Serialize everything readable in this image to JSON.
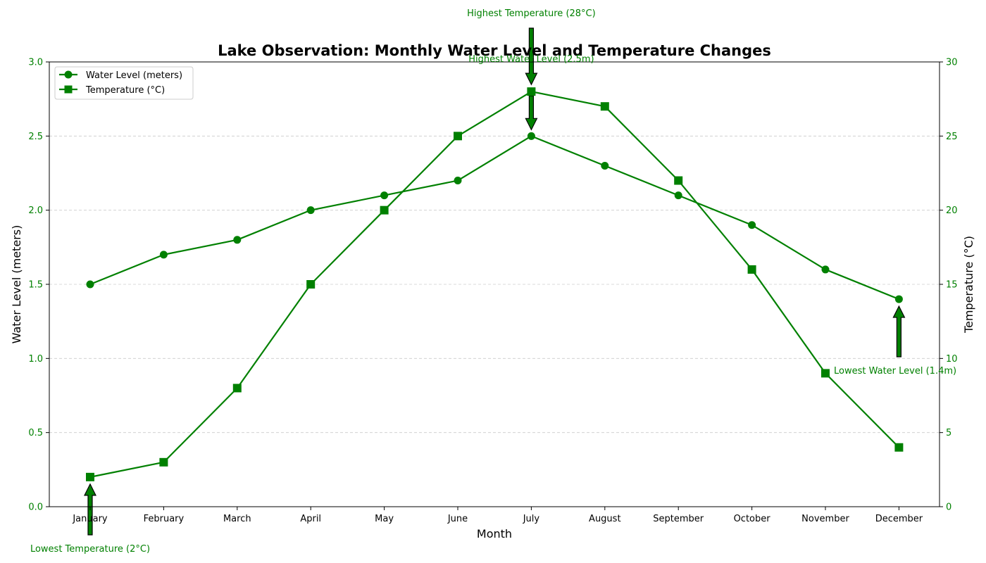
{
  "chart_data": {
    "type": "line",
    "title": "Lake Observation: Monthly Water Level and Temperature Changes",
    "xlabel": "Month",
    "ylabel_left": "Water Level (meters)",
    "ylabel_right": "Temperature (°C)",
    "categories": [
      "January",
      "February",
      "March",
      "April",
      "May",
      "June",
      "July",
      "August",
      "September",
      "October",
      "November",
      "December"
    ],
    "ylim_left": [
      0,
      3.0
    ],
    "ylim_right": [
      0,
      30
    ],
    "yticks_left": [
      "0.0",
      "0.5",
      "1.0",
      "1.5",
      "2.0",
      "2.5",
      "3.0"
    ],
    "yticks_right": [
      "0",
      "5",
      "10",
      "15",
      "20",
      "25",
      "30"
    ],
    "grid": "horizontal dashed",
    "legend_position": "top-left",
    "series": [
      {
        "name": "Water Level (meters)",
        "axis": "left",
        "marker": "circle",
        "color": "#008000",
        "values": [
          1.5,
          1.7,
          1.8,
          2.0,
          2.1,
          2.2,
          2.5,
          2.3,
          2.1,
          1.9,
          1.6,
          1.4
        ]
      },
      {
        "name": "Temperature (°C)",
        "axis": "right",
        "marker": "square",
        "color": "#008000",
        "values": [
          2,
          3,
          8,
          15,
          20,
          25,
          28,
          27,
          22,
          16,
          9,
          4
        ]
      }
    ],
    "annotations": [
      {
        "text": "Highest Temperature (28°C)",
        "month": "July",
        "series": "Temperature (°C)"
      },
      {
        "text": "Highest Water Level (2.5m)",
        "month": "July",
        "series": "Water Level (meters)"
      },
      {
        "text": "Lowest Water Level (1.4m)",
        "month": "December",
        "series": "Water Level (meters)"
      },
      {
        "text": "Lowest Temperature (2°C)",
        "month": "January",
        "series": "Temperature (°C)"
      }
    ]
  },
  "colors": {
    "series": "#008000",
    "tick_text": "#008000",
    "axis": "#000000",
    "grid": "#cccccc",
    "arrow_fill": "#008000",
    "arrow_stroke": "#000000"
  }
}
